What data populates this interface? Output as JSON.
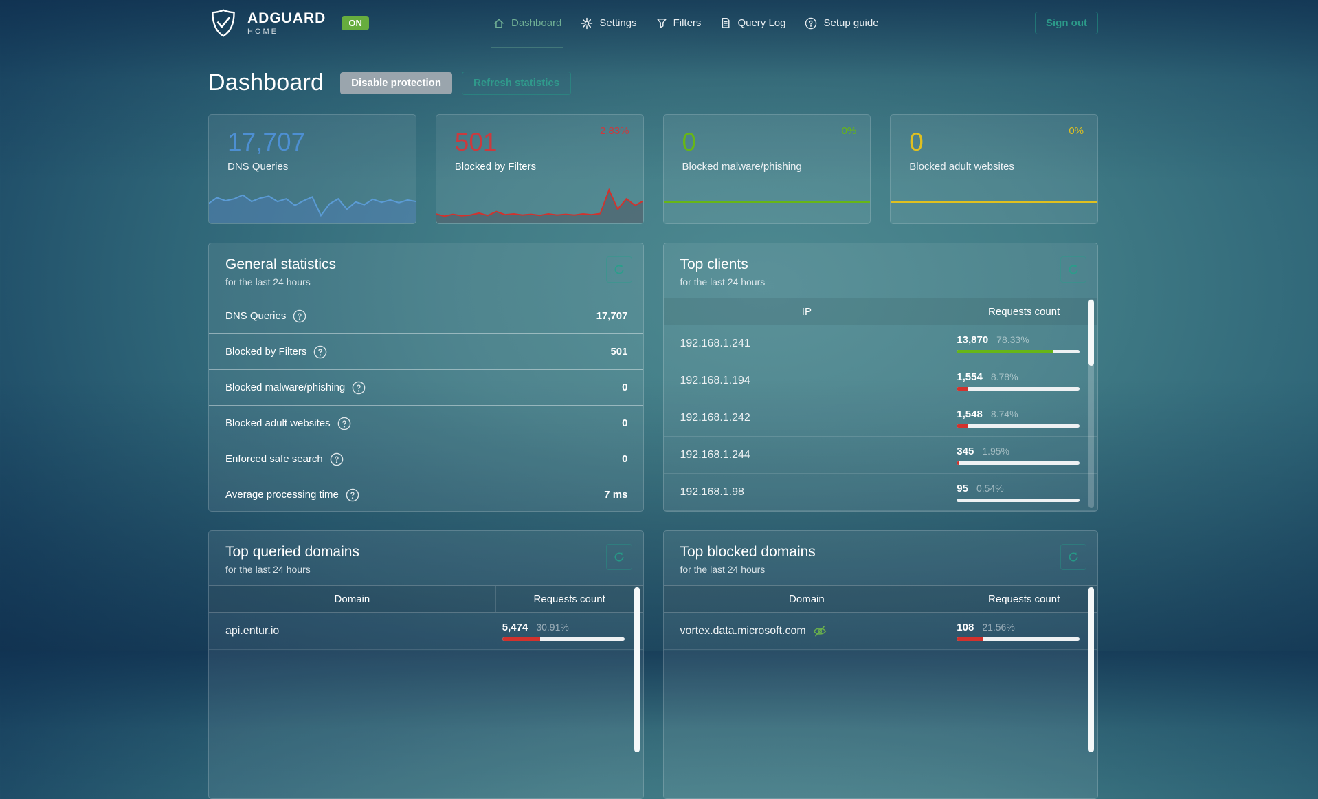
{
  "colors": {
    "blue": "#4d8fd2",
    "red": "#cb3a3e",
    "green": "#67b617",
    "yellow": "#e0c01f",
    "accent": "#24a189",
    "bar_track": "#eef1f3",
    "badge": "#67ad3e",
    "nav_active": "#6fae94"
  },
  "navbar": {
    "brand_name": "ADGUARD",
    "brand_sub": "HOME",
    "protection_badge": "ON",
    "items": [
      {
        "label": "Dashboard",
        "icon": "home-icon",
        "active": true
      },
      {
        "label": "Settings",
        "icon": "gear-icon",
        "active": false
      },
      {
        "label": "Filters",
        "icon": "funnel-icon",
        "active": false
      },
      {
        "label": "Query Log",
        "icon": "document-icon",
        "active": false
      },
      {
        "label": "Setup guide",
        "icon": "help-icon",
        "active": false
      }
    ],
    "signout_label": "Sign out"
  },
  "header": {
    "title": "Dashboard",
    "disable_button": "Disable protection",
    "refresh_button": "Refresh statistics"
  },
  "cards": [
    {
      "value": "17,707",
      "label": "DNS Queries",
      "percent": "",
      "spark": {
        "stroke": "#5b9bd5",
        "fill": "rgba(75,125,185,0.45)",
        "points": [
          0.42,
          0.58,
          0.5,
          0.55,
          0.65,
          0.48,
          0.57,
          0.62,
          0.48,
          0.55,
          0.38,
          0.5,
          0.6,
          0.12,
          0.42,
          0.55,
          0.28,
          0.47,
          0.4,
          0.54,
          0.46,
          0.52,
          0.45,
          0.52,
          0.48
        ]
      }
    },
    {
      "value": "501",
      "label": "Blocked by Filters",
      "percent": "2.83%",
      "spark": {
        "stroke": "#d2322d",
        "fill": "rgba(78,88,98,0.55)",
        "points": [
          0.16,
          0.1,
          0.15,
          0.11,
          0.13,
          0.18,
          0.12,
          0.22,
          0.14,
          0.16,
          0.13,
          0.15,
          0.12,
          0.16,
          0.13,
          0.15,
          0.13,
          0.16,
          0.14,
          0.17,
          0.78,
          0.28,
          0.55,
          0.38,
          0.5
        ]
      }
    },
    {
      "value": "0",
      "label": "Blocked malware/phishing",
      "percent": "0%",
      "flat_color": "#67b617"
    },
    {
      "value": "0",
      "label": "Blocked adult websites",
      "percent": "0%",
      "flat_color": "#e0c01f"
    }
  ],
  "general_stats": {
    "title": "General statistics",
    "subtitle": "for the last 24 hours",
    "rows": [
      {
        "label": "DNS Queries",
        "value": "17,707"
      },
      {
        "label": "Blocked by Filters",
        "value": "501"
      },
      {
        "label": "Blocked malware/phishing",
        "value": "0"
      },
      {
        "label": "Blocked adult websites",
        "value": "0"
      },
      {
        "label": "Enforced safe search",
        "value": "0"
      },
      {
        "label": "Average processing time",
        "value": "7 ms"
      }
    ]
  },
  "top_clients": {
    "title": "Top clients",
    "subtitle": "for the last 24 hours",
    "columns": [
      "IP",
      "Requests count"
    ],
    "rows": [
      {
        "ip": "192.168.1.241",
        "count": "13,870",
        "percent_label": "78.33%",
        "bar": {
          "percent": 78.33,
          "color": "#67b617"
        }
      },
      {
        "ip": "192.168.1.194",
        "count": "1,554",
        "percent_label": "8.78%",
        "bar": {
          "percent": 8.78,
          "color": "#d2322d"
        }
      },
      {
        "ip": "192.168.1.242",
        "count": "1,548",
        "percent_label": "8.74%",
        "bar": {
          "percent": 8.74,
          "color": "#d2322d"
        }
      },
      {
        "ip": "192.168.1.244",
        "count": "345",
        "percent_label": "1.95%",
        "bar": {
          "percent": 1.95,
          "color": "#d2322d"
        }
      },
      {
        "ip": "192.168.1.98",
        "count": "95",
        "percent_label": "0.54%",
        "bar": {
          "percent": 0.54,
          "color": "#d2322d"
        }
      }
    ]
  },
  "top_queried_domains": {
    "title": "Top queried domains",
    "subtitle": "for the last 24 hours",
    "columns": [
      "Domain",
      "Requests count"
    ],
    "rows": [
      {
        "domain": "api.entur.io",
        "count": "5,474",
        "percent_label": "30.91%",
        "bar": {
          "percent": 30.91,
          "color": "#d2322d"
        }
      }
    ]
  },
  "top_blocked_domains": {
    "title": "Top blocked domains",
    "subtitle": "for the last 24 hours",
    "columns": [
      "Domain",
      "Requests count"
    ],
    "rows": [
      {
        "domain": "vortex.data.microsoft.com",
        "count": "108",
        "percent_label": "21.56%",
        "bar": {
          "percent": 21.56,
          "color": "#d2322d"
        }
      }
    ]
  }
}
